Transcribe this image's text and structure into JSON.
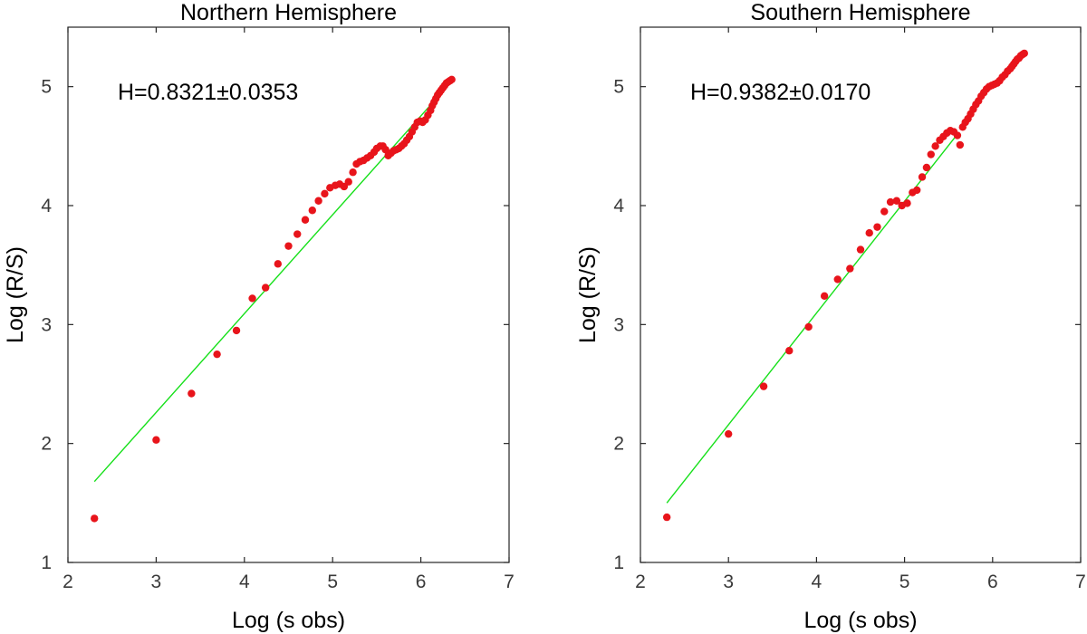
{
  "chart_data": [
    {
      "type": "scatter",
      "title": "Northern Hemisphere",
      "xlabel": "Log (s obs)",
      "ylabel": "Log (R/S)",
      "xlim": [
        2,
        7
      ],
      "ylim": [
        1,
        5.5
      ],
      "xticks": [
        2,
        3,
        4,
        5,
        6,
        7
      ],
      "yticks": [
        1,
        2,
        3,
        4,
        5
      ],
      "grid": false,
      "annotation": "H=0.8321±0.0353",
      "point_color": "#e8141b",
      "fit_color": "#16e01a",
      "fit_line": {
        "x": [
          2.3,
          6.2
        ],
        "y": [
          1.68,
          4.92
        ]
      },
      "points": {
        "x": [
          2.3,
          3.0,
          3.4,
          3.69,
          3.91,
          4.09,
          4.24,
          4.38,
          4.5,
          4.6,
          4.69,
          4.77,
          4.84,
          4.91,
          4.97,
          5.03,
          5.08,
          5.13,
          5.18,
          5.23,
          5.27,
          5.31,
          5.35,
          5.39,
          5.43,
          5.47,
          5.5,
          5.54,
          5.57,
          5.6,
          5.63,
          5.66,
          5.69,
          5.72,
          5.75,
          5.78,
          5.81,
          5.84,
          5.87,
          5.9,
          5.93,
          5.96,
          5.99,
          6.02,
          6.05,
          6.08,
          6.11,
          6.13,
          6.15,
          6.17,
          6.19,
          6.21,
          6.23,
          6.25,
          6.27,
          6.29,
          6.31,
          6.33,
          6.35
        ],
        "y": [
          1.37,
          2.03,
          2.42,
          2.75,
          2.95,
          3.22,
          3.31,
          3.51,
          3.66,
          3.76,
          3.88,
          3.96,
          4.04,
          4.1,
          4.15,
          4.17,
          4.18,
          4.16,
          4.2,
          4.28,
          4.35,
          4.37,
          4.38,
          4.4,
          4.42,
          4.45,
          4.48,
          4.5,
          4.5,
          4.47,
          4.42,
          4.44,
          4.46,
          4.47,
          4.48,
          4.5,
          4.52,
          4.55,
          4.58,
          4.62,
          4.66,
          4.7,
          4.71,
          4.7,
          4.72,
          4.76,
          4.8,
          4.84,
          4.87,
          4.9,
          4.93,
          4.95,
          4.97,
          4.99,
          5.01,
          5.03,
          5.04,
          5.05,
          5.06
        ]
      }
    },
    {
      "type": "scatter",
      "title": "Southern Hemisphere",
      "xlabel": "Log (s obs)",
      "ylabel": "Log (R/S)",
      "xlim": [
        2,
        7
      ],
      "ylim": [
        1,
        5.5
      ],
      "xticks": [
        2,
        3,
        4,
        5,
        6,
        7
      ],
      "yticks": [
        1,
        2,
        3,
        4,
        5
      ],
      "grid": false,
      "annotation": "H=0.9382±0.0170",
      "point_color": "#e8141b",
      "fit_color": "#16e01a",
      "fit_line": {
        "x": [
          2.3,
          5.6
        ],
        "y": [
          1.5,
          4.6
        ]
      },
      "points": {
        "x": [
          2.3,
          3.0,
          3.4,
          3.69,
          3.91,
          4.09,
          4.24,
          4.38,
          4.5,
          4.6,
          4.69,
          4.77,
          4.84,
          4.91,
          4.97,
          5.03,
          5.09,
          5.14,
          5.2,
          5.25,
          5.3,
          5.35,
          5.4,
          5.44,
          5.48,
          5.52,
          5.56,
          5.6,
          5.63,
          5.66,
          5.69,
          5.72,
          5.75,
          5.78,
          5.81,
          5.84,
          5.87,
          5.9,
          5.93,
          5.96,
          5.99,
          6.02,
          6.05,
          6.08,
          6.11,
          6.14,
          6.17,
          6.2,
          6.22,
          6.24,
          6.26,
          6.28,
          6.3,
          6.32,
          6.34,
          6.36
        ],
        "y": [
          1.38,
          2.08,
          2.48,
          2.78,
          2.98,
          3.24,
          3.38,
          3.47,
          3.63,
          3.77,
          3.82,
          3.95,
          4.03,
          4.04,
          4.0,
          4.02,
          4.11,
          4.13,
          4.24,
          4.32,
          4.43,
          4.5,
          4.55,
          4.58,
          4.61,
          4.63,
          4.62,
          4.59,
          4.51,
          4.66,
          4.7,
          4.73,
          4.77,
          4.81,
          4.85,
          4.88,
          4.92,
          4.95,
          4.98,
          5.0,
          5.01,
          5.02,
          5.03,
          5.05,
          5.08,
          5.1,
          5.13,
          5.15,
          5.17,
          5.19,
          5.21,
          5.23,
          5.24,
          5.26,
          5.27,
          5.28
        ]
      }
    }
  ]
}
